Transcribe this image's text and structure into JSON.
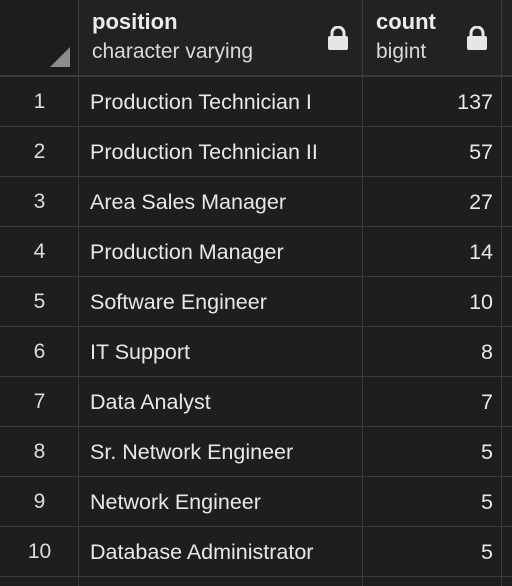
{
  "columns": {
    "position": {
      "name": "position",
      "type": "character varying",
      "icon": "lock-icon"
    },
    "count": {
      "name": "count",
      "type": "bigint",
      "icon": "lock-icon"
    }
  },
  "rows": [
    {
      "num": "1",
      "position": "Production Technician I",
      "count": "137"
    },
    {
      "num": "2",
      "position": "Production Technician II",
      "count": "57"
    },
    {
      "num": "3",
      "position": "Area Sales Manager",
      "count": "27"
    },
    {
      "num": "4",
      "position": "Production Manager",
      "count": "14"
    },
    {
      "num": "5",
      "position": "Software Engineer",
      "count": "10"
    },
    {
      "num": "6",
      "position": "IT Support",
      "count": "8"
    },
    {
      "num": "7",
      "position": "Data Analyst",
      "count": "7"
    },
    {
      "num": "8",
      "position": "Sr. Network Engineer",
      "count": "5"
    },
    {
      "num": "9",
      "position": "Network Engineer",
      "count": "5"
    },
    {
      "num": "10",
      "position": "Database Administrator",
      "count": "5"
    }
  ],
  "colors": {
    "background": "#1e1e1e",
    "grid_line": "#3b3b3b",
    "text": "#e8e8e8"
  }
}
